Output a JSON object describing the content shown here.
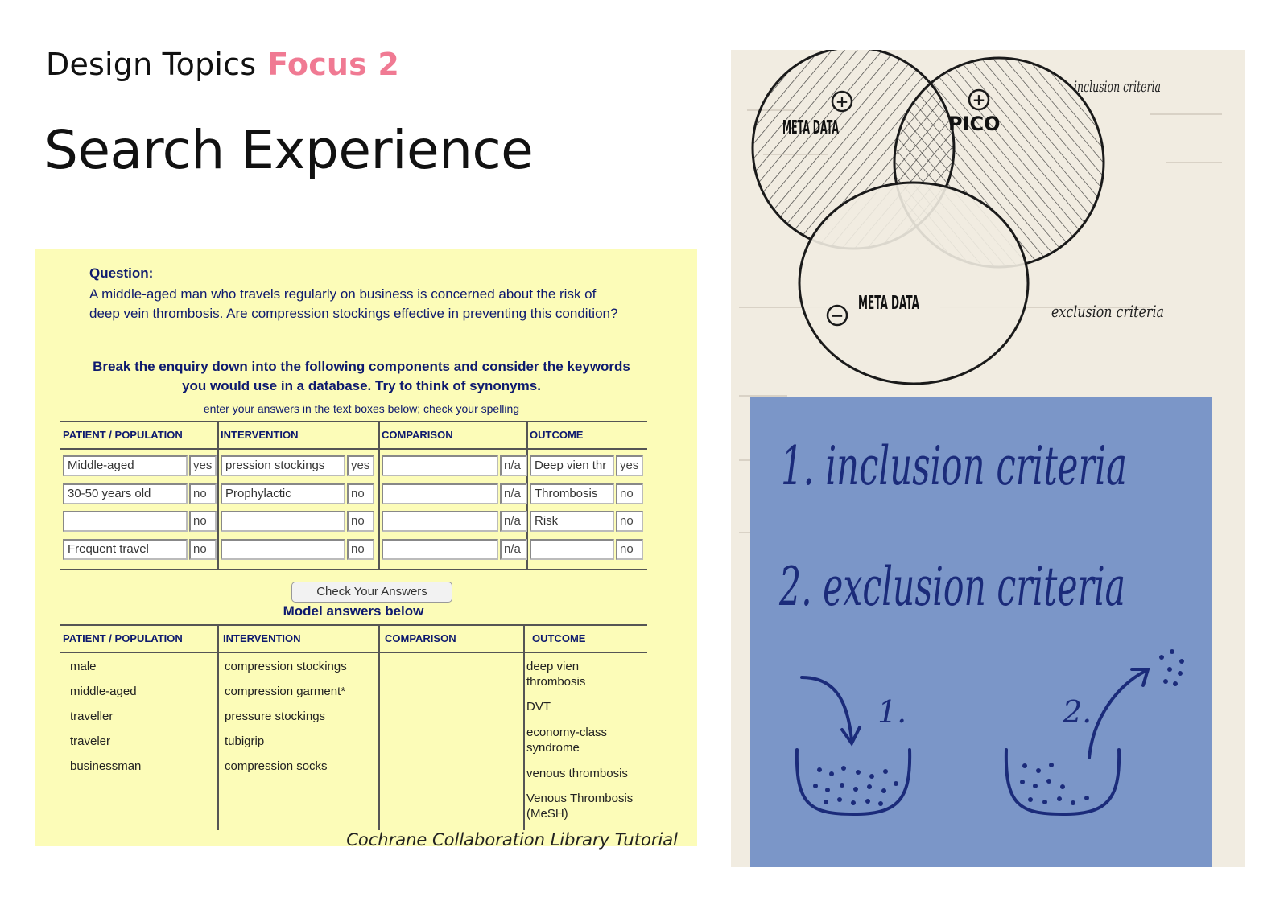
{
  "header": {
    "topic": "Design Topics",
    "focus": "Focus 2"
  },
  "title": "Search Experience",
  "tutorial": {
    "question_label": "Question:",
    "question_text": "A middle-aged man who travels regularly on business is concerned about the risk of deep vein thrombosis. Are compression stockings effective in preventing this condition?",
    "instruction": "Break the enquiry down into the following components and consider the keywords you would use in a database. Try to think of synonyms.",
    "hint": "enter your answers in the text boxes below; check your spelling",
    "columns": [
      "PATIENT / POPULATION",
      "INTERVENTION",
      "COMPARISON",
      "OUTCOME"
    ],
    "rows": [
      [
        {
          "v": "Middle-aged",
          "s": "yes"
        },
        {
          "v": "pression stockings",
          "s": "yes"
        },
        {
          "v": "",
          "s": "n/a"
        },
        {
          "v": "Deep vien thr",
          "s": "yes"
        }
      ],
      [
        {
          "v": "30-50 years old",
          "s": "no"
        },
        {
          "v": "Prophylactic",
          "s": "no"
        },
        {
          "v": "",
          "s": "n/a"
        },
        {
          "v": "Thrombosis",
          "s": "no"
        }
      ],
      [
        {
          "v": "",
          "s": "no"
        },
        {
          "v": "",
          "s": "no"
        },
        {
          "v": "",
          "s": "n/a"
        },
        {
          "v": "Risk",
          "s": "no"
        }
      ],
      [
        {
          "v": "Frequent travel",
          "s": "no"
        },
        {
          "v": "",
          "s": "no"
        },
        {
          "v": "",
          "s": "n/a"
        },
        {
          "v": "",
          "s": "no"
        }
      ]
    ],
    "check_button": "Check Your Answers",
    "model_heading": "Model answers below",
    "model": {
      "patient": [
        "male",
        "middle-aged",
        "traveller",
        "traveler",
        "businessman"
      ],
      "intervention": [
        "compression stockings",
        "compression garment*",
        "pressure stockings",
        "tubigrip",
        "compression socks"
      ],
      "comparison": [],
      "outcome": [
        "deep vien\nthrombosis",
        "DVT",
        "economy-class\nsyndrome",
        "venous thrombosis",
        "Venous Thrombosis\n(MeSH)"
      ]
    }
  },
  "caption": "Cochrane Collaboration Library Tutorial",
  "sketch": {
    "venn_labels": [
      "META DATA",
      "PICO",
      "META DATA"
    ],
    "signs": [
      "+",
      "+",
      "−"
    ],
    "side_notes": [
      "inclusion criteria",
      "exclusion criteria"
    ],
    "sticky_note": [
      "1. inclusion criteria",
      "2. exclusion criteria"
    ],
    "bowl_labels": [
      "1.",
      "2."
    ],
    "colors": {
      "note": "#7b96c8",
      "ink": "#1b2b7a",
      "paper": "#f1ece1"
    }
  }
}
